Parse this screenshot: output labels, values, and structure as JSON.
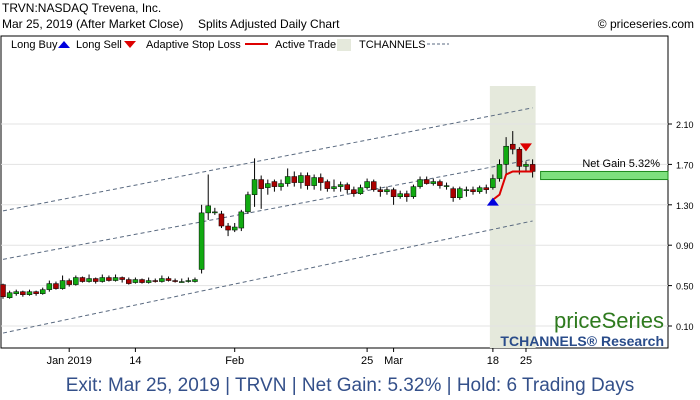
{
  "header": {
    "title_line1": "TRVN:NASDAQ Trevena, Inc.",
    "date_line": "Mar 25, 2019 (After Market Close)",
    "chart_kind": "Splits Adjusted Daily Chart",
    "copyright": "© priceseries.com"
  },
  "legend": {
    "long_buy": "Long Buy",
    "long_sell": "Long Sell",
    "adaptive_stop": "Adaptive Stop Loss",
    "active_trade": "Active Trade",
    "tchannels": "TCHANNELS"
  },
  "net_gain_label": "Net Gain 5.32%",
  "brand": {
    "main": "priceSeries",
    "sub": "TCHANNELS® Research"
  },
  "footer_text": "Exit: Mar 25, 2019 | TRVN | Net Gain: 5.32% | Hold: 6 Trading Days",
  "colors": {
    "bull": "#11aa11",
    "bear": "#aa0000",
    "stop": "#dd0000",
    "buy_arrow": "#0000dd",
    "sell_arrow": "#dd0000",
    "active": "#e5e9dc",
    "gain_band": "#7ee07e",
    "channel": "#5a6a80",
    "brand_green": "#2e7a1e",
    "brand_blue": "#2a4c8a",
    "footer": "#34508a"
  },
  "chart_data": {
    "type": "candlestick",
    "ylim": [
      0.0,
      2.35
    ],
    "yticks": [
      "2.10",
      "1.70",
      "1.30",
      "0.90",
      "0.50",
      "0.10"
    ],
    "xticks": [
      {
        "i": 10,
        "label": "Jan 2019"
      },
      {
        "i": 20,
        "label": "14"
      },
      {
        "i": 35,
        "label": "Feb"
      },
      {
        "i": 55,
        "label": "25"
      },
      {
        "i": 59,
        "label": "Mar"
      },
      {
        "i": 74,
        "label": "18"
      },
      {
        "i": 79,
        "label": "25"
      }
    ],
    "candles": [
      [
        0.51,
        0.39,
        0.52,
        0.37
      ],
      [
        0.38,
        0.43,
        0.45,
        0.37
      ],
      [
        0.42,
        0.44,
        0.46,
        0.4
      ],
      [
        0.44,
        0.41,
        0.45,
        0.39
      ],
      [
        0.41,
        0.44,
        0.46,
        0.4
      ],
      [
        0.44,
        0.42,
        0.45,
        0.4
      ],
      [
        0.42,
        0.46,
        0.48,
        0.41
      ],
      [
        0.46,
        0.52,
        0.55,
        0.44
      ],
      [
        0.52,
        0.47,
        0.54,
        0.46
      ],
      [
        0.47,
        0.55,
        0.6,
        0.46
      ],
      [
        0.55,
        0.51,
        0.57,
        0.49
      ],
      [
        0.51,
        0.58,
        0.6,
        0.5
      ],
      [
        0.58,
        0.54,
        0.59,
        0.53
      ],
      [
        0.54,
        0.57,
        0.61,
        0.53
      ],
      [
        0.57,
        0.54,
        0.58,
        0.52
      ],
      [
        0.54,
        0.58,
        0.61,
        0.53
      ],
      [
        0.58,
        0.55,
        0.6,
        0.54
      ],
      [
        0.55,
        0.58,
        0.61,
        0.54
      ],
      [
        0.58,
        0.56,
        0.59,
        0.53
      ],
      [
        0.56,
        0.52,
        0.58,
        0.51
      ],
      [
        0.53,
        0.56,
        0.58,
        0.52
      ],
      [
        0.56,
        0.53,
        0.57,
        0.52
      ],
      [
        0.53,
        0.55,
        0.58,
        0.52
      ],
      [
        0.55,
        0.54,
        0.57,
        0.53
      ],
      [
        0.54,
        0.57,
        0.6,
        0.53
      ],
      [
        0.57,
        0.55,
        0.59,
        0.54
      ],
      [
        0.55,
        0.54,
        0.57,
        0.53
      ],
      [
        0.54,
        0.54,
        0.57,
        0.53
      ],
      [
        0.54,
        0.55,
        0.58,
        0.53
      ],
      [
        0.54,
        0.56,
        0.58,
        0.53
      ],
      [
        0.66,
        1.22,
        1.3,
        0.62
      ],
      [
        1.22,
        1.29,
        1.6,
        1.15
      ],
      [
        1.22,
        1.23,
        1.27,
        1.2
      ],
      [
        1.21,
        1.09,
        1.24,
        1.07
      ],
      [
        1.09,
        1.05,
        1.12,
        0.99
      ],
      [
        1.05,
        1.08,
        1.12,
        1.03
      ],
      [
        1.07,
        1.23,
        1.25,
        1.04
      ],
      [
        1.23,
        1.4,
        1.43,
        1.21
      ],
      [
        1.4,
        1.55,
        1.76,
        1.28
      ],
      [
        1.55,
        1.46,
        1.59,
        1.26
      ],
      [
        1.47,
        1.51,
        1.55,
        1.4
      ],
      [
        1.53,
        1.48,
        1.55,
        1.43
      ],
      [
        1.48,
        1.51,
        1.55,
        1.44
      ],
      [
        1.51,
        1.58,
        1.66,
        1.48
      ],
      [
        1.58,
        1.52,
        1.63,
        1.48
      ],
      [
        1.52,
        1.59,
        1.62,
        1.46
      ],
      [
        1.59,
        1.49,
        1.62,
        1.45
      ],
      [
        1.49,
        1.57,
        1.6,
        1.45
      ],
      [
        1.57,
        1.52,
        1.61,
        1.44
      ],
      [
        1.53,
        1.46,
        1.55,
        1.43
      ],
      [
        1.46,
        1.48,
        1.55,
        1.43
      ],
      [
        1.48,
        1.5,
        1.53,
        1.43
      ],
      [
        1.5,
        1.45,
        1.52,
        1.41
      ],
      [
        1.45,
        1.41,
        1.48,
        1.38
      ],
      [
        1.41,
        1.47,
        1.5,
        1.4
      ],
      [
        1.47,
        1.53,
        1.56,
        1.45
      ],
      [
        1.53,
        1.45,
        1.55,
        1.43
      ],
      [
        1.45,
        1.43,
        1.48,
        1.38
      ],
      [
        1.43,
        1.45,
        1.48,
        1.4
      ],
      [
        1.45,
        1.38,
        1.47,
        1.3
      ],
      [
        1.38,
        1.41,
        1.44,
        1.36
      ],
      [
        1.41,
        1.38,
        1.44,
        1.33
      ],
      [
        1.38,
        1.48,
        1.5,
        1.36
      ],
      [
        1.48,
        1.55,
        1.58,
        1.46
      ],
      [
        1.55,
        1.51,
        1.58,
        1.5
      ],
      [
        1.51,
        1.53,
        1.56,
        1.49
      ],
      [
        1.53,
        1.49,
        1.55,
        1.46
      ],
      [
        1.49,
        1.49,
        1.52,
        1.45
      ],
      [
        1.46,
        1.37,
        1.48,
        1.33
      ],
      [
        1.37,
        1.46,
        1.48,
        1.35
      ],
      [
        1.44,
        1.45,
        1.48,
        1.38
      ],
      [
        1.45,
        1.43,
        1.48,
        1.4
      ],
      [
        1.43,
        1.47,
        1.49,
        1.41
      ],
      [
        1.47,
        1.45,
        1.5,
        1.41
      ],
      [
        1.47,
        1.56,
        1.6,
        1.45
      ],
      [
        1.56,
        1.7,
        1.75,
        1.53
      ],
      [
        1.7,
        1.88,
        1.97,
        1.6
      ],
      [
        1.9,
        1.85,
        2.03,
        1.8
      ],
      [
        1.85,
        1.68,
        1.87,
        1.6
      ],
      [
        1.68,
        1.7,
        1.73,
        1.63
      ],
      [
        1.7,
        1.63,
        1.75,
        1.57
      ]
    ],
    "active_trade": {
      "start": 74,
      "end": 80
    },
    "long_buy_index": 74,
    "long_sell_index": 80,
    "adaptive_stop": [
      1.35,
      1.4,
      1.6,
      1.63,
      1.63,
      1.63,
      1.63
    ],
    "net_gain_band": [
      1.55,
      1.63
    ],
    "channel_upper": [
      [
        0,
        1.24
      ],
      [
        80,
        2.26
      ]
    ],
    "channel_middle": [
      [
        0,
        0.76
      ],
      [
        80,
        1.75
      ]
    ],
    "channel_lower": [
      [
        0,
        0.03
      ],
      [
        80,
        1.14
      ]
    ]
  }
}
